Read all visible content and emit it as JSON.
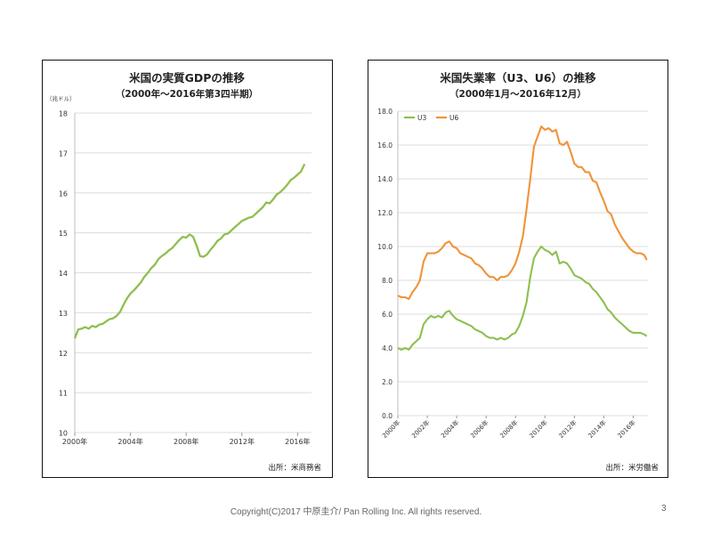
{
  "chart_data": [
    {
      "type": "line",
      "title": "米国の実質GDPの推移",
      "subtitle": "（2000年～2016年第3四半期）",
      "unit_label": "（兆ドル）",
      "source": "出所：米商務省",
      "xlabel": "",
      "ylabel": "",
      "ylim": [
        10,
        18
      ],
      "y_ticks": [
        "10",
        "11",
        "12",
        "13",
        "14",
        "15",
        "16",
        "17",
        "18"
      ],
      "x_tick_labels": [
        "2000年",
        "2004年",
        "2008年",
        "2012年",
        "2016年"
      ],
      "grid": "horizontal",
      "colors": {
        "line": "#8fbf4f"
      },
      "series": [
        {
          "x": [
            2000.0,
            2000.25,
            2000.5,
            2000.75,
            2001.0,
            2001.25,
            2001.5,
            2001.75,
            2002.0,
            2002.25,
            2002.5,
            2002.75,
            2003.0,
            2003.25,
            2003.5,
            2003.75,
            2004.0,
            2004.25,
            2004.5,
            2004.75,
            2005.0,
            2005.25,
            2005.5,
            2005.75,
            2006.0,
            2006.25,
            2006.5,
            2006.75,
            2007.0,
            2007.25,
            2007.5,
            2007.75,
            2008.0,
            2008.25,
            2008.5,
            2008.75,
            2009.0,
            2009.25,
            2009.5,
            2009.75,
            2010.0,
            2010.25,
            2010.5,
            2010.75,
            2011.0,
            2011.25,
            2011.5,
            2011.75,
            2012.0,
            2012.25,
            2012.5,
            2012.75,
            2013.0,
            2013.25,
            2013.5,
            2013.75,
            2014.0,
            2014.25,
            2014.5,
            2014.75,
            2015.0,
            2015.25,
            2015.5,
            2015.75,
            2016.0,
            2016.25,
            2016.5
          ],
          "values": [
            12.36,
            12.58,
            12.6,
            12.64,
            12.6,
            12.67,
            12.64,
            12.7,
            12.72,
            12.78,
            12.84,
            12.86,
            12.92,
            13.02,
            13.2,
            13.36,
            13.48,
            13.56,
            13.66,
            13.76,
            13.9,
            14.0,
            14.12,
            14.2,
            14.34,
            14.42,
            14.48,
            14.56,
            14.62,
            14.72,
            14.82,
            14.9,
            14.88,
            14.96,
            14.9,
            14.68,
            14.42,
            14.4,
            14.46,
            14.58,
            14.68,
            14.8,
            14.86,
            14.96,
            14.98,
            15.06,
            15.14,
            15.22,
            15.3,
            15.34,
            15.38,
            15.4,
            15.48,
            15.56,
            15.64,
            15.76,
            15.74,
            15.84,
            15.96,
            16.02,
            16.1,
            16.2,
            16.32,
            16.38,
            16.46,
            16.54,
            16.72
          ]
        }
      ]
    },
    {
      "type": "line",
      "title": "米国失業率（U3、U6）の推移",
      "subtitle": "（2000年1月～2016年12月）",
      "source": "出所：米労働省",
      "xlabel": "",
      "ylabel": "",
      "ylim": [
        0,
        18
      ],
      "y_ticks": [
        "0.0",
        "2.0",
        "4.0",
        "6.0",
        "8.0",
        "10.0",
        "12.0",
        "14.0",
        "16.0",
        "18.0"
      ],
      "x_tick_labels": [
        "2000年",
        "2002年",
        "2004年",
        "2006年",
        "2008年",
        "2010年",
        "2012年",
        "2014年",
        "2016年"
      ],
      "grid": "horizontal",
      "legend": "top-left",
      "colors": {
        "U3": "#8fbf4f",
        "U6": "#f0933a"
      },
      "series": [
        {
          "name": "U3",
          "x": [
            2000.0,
            2000.25,
            2000.5,
            2000.75,
            2001.0,
            2001.25,
            2001.5,
            2001.75,
            2002.0,
            2002.25,
            2002.5,
            2002.75,
            2003.0,
            2003.25,
            2003.5,
            2003.75,
            2004.0,
            2004.25,
            2004.5,
            2004.75,
            2005.0,
            2005.25,
            2005.5,
            2005.75,
            2006.0,
            2006.25,
            2006.5,
            2006.75,
            2007.0,
            2007.25,
            2007.5,
            2007.75,
            2008.0,
            2008.25,
            2008.5,
            2008.75,
            2009.0,
            2009.25,
            2009.5,
            2009.75,
            2010.0,
            2010.25,
            2010.5,
            2010.75,
            2011.0,
            2011.25,
            2011.5,
            2011.75,
            2012.0,
            2012.25,
            2012.5,
            2012.75,
            2013.0,
            2013.25,
            2013.5,
            2013.75,
            2014.0,
            2014.25,
            2014.5,
            2014.75,
            2015.0,
            2015.25,
            2015.5,
            2015.75,
            2016.0,
            2016.25,
            2016.5,
            2016.75,
            2016.92
          ],
          "values": [
            4.0,
            3.9,
            4.0,
            3.9,
            4.2,
            4.4,
            4.6,
            5.4,
            5.7,
            5.9,
            5.8,
            5.9,
            5.8,
            6.1,
            6.2,
            5.9,
            5.7,
            5.6,
            5.5,
            5.4,
            5.3,
            5.1,
            5.0,
            4.9,
            4.7,
            4.6,
            4.6,
            4.5,
            4.6,
            4.5,
            4.6,
            4.8,
            4.9,
            5.3,
            5.9,
            6.7,
            8.2,
            9.3,
            9.7,
            10.0,
            9.8,
            9.7,
            9.5,
            9.7,
            9.0,
            9.1,
            9.0,
            8.7,
            8.3,
            8.2,
            8.1,
            7.9,
            7.8,
            7.5,
            7.3,
            7.0,
            6.7,
            6.3,
            6.1,
            5.8,
            5.6,
            5.4,
            5.2,
            5.0,
            4.9,
            4.9,
            4.9,
            4.8,
            4.7
          ]
        },
        {
          "name": "U6",
          "x": [
            2000.0,
            2000.25,
            2000.5,
            2000.75,
            2001.0,
            2001.25,
            2001.5,
            2001.75,
            2002.0,
            2002.25,
            2002.5,
            2002.75,
            2003.0,
            2003.25,
            2003.5,
            2003.75,
            2004.0,
            2004.25,
            2004.5,
            2004.75,
            2005.0,
            2005.25,
            2005.5,
            2005.75,
            2006.0,
            2006.25,
            2006.5,
            2006.75,
            2007.0,
            2007.25,
            2007.5,
            2007.75,
            2008.0,
            2008.25,
            2008.5,
            2008.75,
            2009.0,
            2009.25,
            2009.5,
            2009.75,
            2010.0,
            2010.25,
            2010.5,
            2010.75,
            2011.0,
            2011.25,
            2011.5,
            2011.75,
            2012.0,
            2012.25,
            2012.5,
            2012.75,
            2013.0,
            2013.25,
            2013.5,
            2013.75,
            2014.0,
            2014.25,
            2014.5,
            2014.75,
            2015.0,
            2015.25,
            2015.5,
            2015.75,
            2016.0,
            2016.25,
            2016.5,
            2016.75,
            2016.92
          ],
          "values": [
            7.1,
            7.0,
            7.0,
            6.9,
            7.3,
            7.6,
            8.0,
            9.1,
            9.6,
            9.6,
            9.6,
            9.7,
            9.9,
            10.2,
            10.3,
            10.0,
            9.9,
            9.6,
            9.5,
            9.4,
            9.3,
            9.0,
            8.9,
            8.7,
            8.4,
            8.2,
            8.2,
            8.0,
            8.2,
            8.2,
            8.3,
            8.6,
            9.0,
            9.7,
            10.6,
            12.2,
            14.0,
            15.9,
            16.5,
            17.1,
            16.9,
            17.0,
            16.8,
            16.9,
            16.1,
            16.0,
            16.2,
            15.6,
            14.9,
            14.7,
            14.7,
            14.4,
            14.4,
            13.9,
            13.8,
            13.2,
            12.7,
            12.1,
            11.9,
            11.3,
            10.9,
            10.5,
            10.2,
            9.9,
            9.7,
            9.6,
            9.6,
            9.5,
            9.2
          ]
        }
      ]
    }
  ],
  "footer": {
    "copyright": "Copyright(C)2017 中原圭介/ Pan Rolling Inc. All rights reserved.",
    "page_number": "3"
  }
}
